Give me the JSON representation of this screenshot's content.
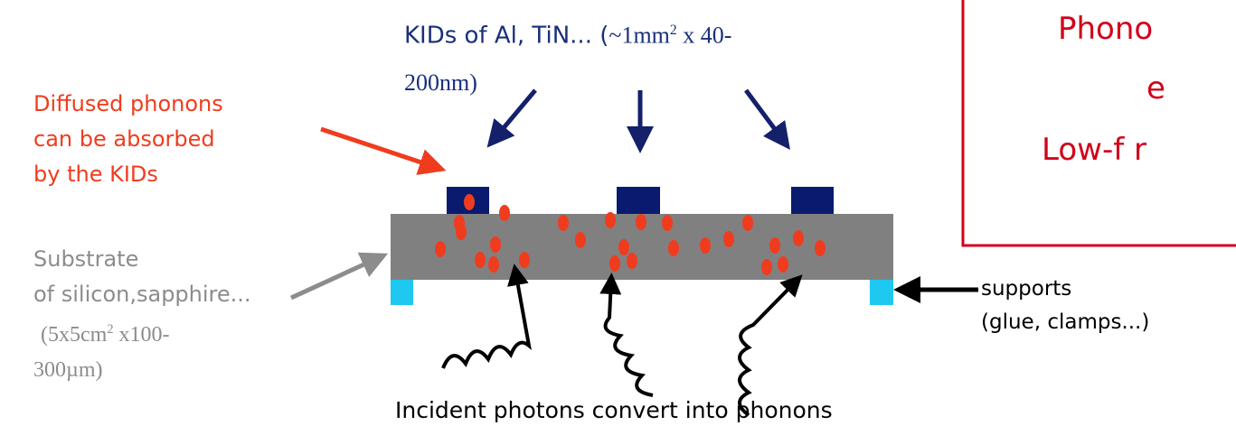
{
  "kids_label": {
    "text": "KIDs of Al, TiN... (",
    "size": "~1mm",
    "exponent": "2",
    "thickness_1": " x 40-",
    "thickness_2": "200nm)"
  },
  "diffused_label": [
    "Diffused phonons",
    "can be absorbed",
    "by the KIDs"
  ],
  "substrate_label": {
    "lines": [
      "Substrate",
      "of silicon,sapphire..."
    ],
    "size": "(5x5cm",
    "exponent": "2",
    "thickness_1": " x100-",
    "thickness_2": "300µm)"
  },
  "supports_label": [
    "supports",
    "(glue, clamps...)"
  ],
  "photons_label": "Incident photons convert into phonons",
  "box_text": [
    "Phono",
    "e",
    "Low-f r"
  ]
}
